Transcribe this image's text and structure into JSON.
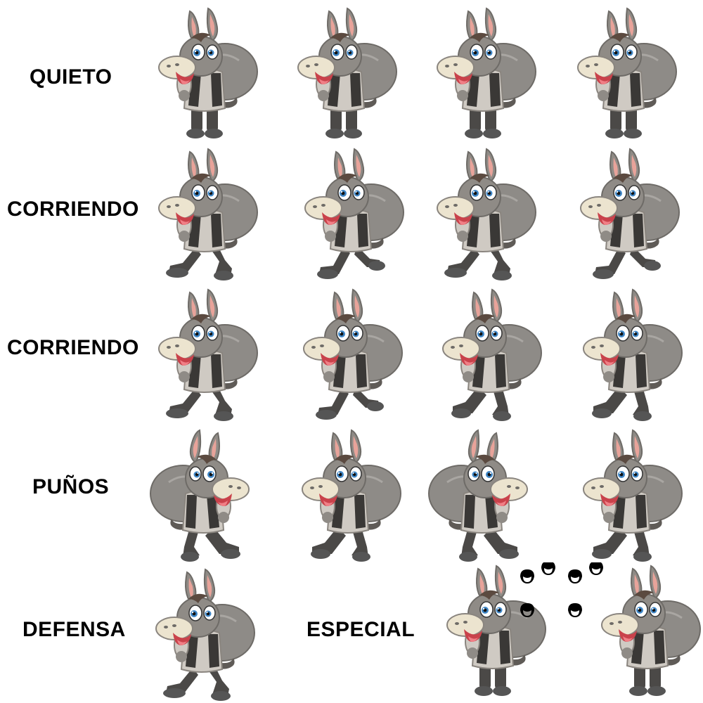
{
  "sheet": {
    "rows": [
      {
        "label": "QUIETO",
        "pose": "idle"
      },
      {
        "label": "CORRIENDO",
        "pose": "run-a"
      },
      {
        "label": "CORRIENDO",
        "pose": "run-b"
      },
      {
        "label": "PUÑOS",
        "pose": "punch"
      },
      {
        "label": "DEFENSA",
        "pose": "defend"
      }
    ],
    "special_label": "ESPECIAL",
    "icons": {
      "sprite": "donkey-with-sack-icon",
      "effect": "hoofprints-icon"
    },
    "colors": {
      "fur": "#8f8b86",
      "fur_dark": "#5f5b57",
      "muzzle": "#ece4cf",
      "ear_inner": "#e8a39a",
      "eye_iris": "#3f86c6",
      "mouth": "#c9424b",
      "tongue": "#f07f86",
      "vest": "#3a3836",
      "sack": "#8e8b87",
      "pants": "#4b4947",
      "label_text": "#000000"
    }
  }
}
